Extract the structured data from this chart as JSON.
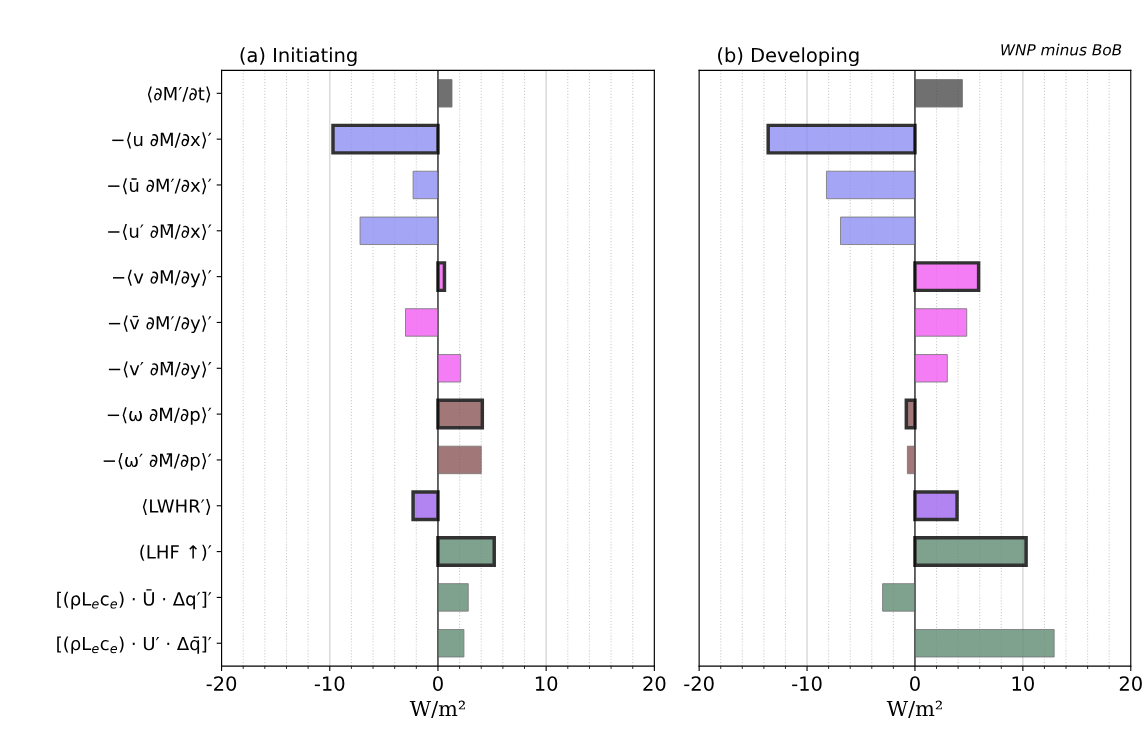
{
  "chart_data": [
    {
      "type": "bar",
      "orientation": "horizontal",
      "title": "(a) Initiating",
      "xlabel": "W/m²",
      "categories": [
        "⟨∂M′/∂t⟩",
        "−⟨u ∂M/∂x⟩′",
        "−⟨ū ∂M′/∂x⟩′",
        "−⟨u′ ∂M̄/∂x⟩′",
        "−⟨v ∂M/∂y⟩′",
        "−⟨v̄ ∂M′/∂y⟩′",
        "−⟨v′ ∂M̄/∂y⟩′",
        "−⟨ω ∂M/∂p⟩′",
        "−⟨ω′ ∂M̄/∂p⟩′",
        "⟨LWHR′⟩",
        "(LHF ↑)′",
        "[(ρL$_{e}$c$_{e}$) · Ū · Δq′]′",
        "[(ρL$_{e}$c$_{e}$) · U′ · Δq̄]′"
      ],
      "series": [
        {
          "line_style": "solid",
          "colors": [
            "#4d4d4d",
            "#8f8ff5",
            "#8f8ff5",
            "#8f8ff5",
            "#f25cf2",
            "#f25cf2",
            "#f25cf2",
            "#8b5656",
            "#8b5656",
            "#a066ef",
            "#5f8c73",
            "#5f8c73",
            "#5f8c73"
          ],
          "values": [
            null,
            -9.7,
            null,
            null,
            0.6,
            null,
            null,
            4.1,
            null,
            -2.3,
            5.2,
            null,
            null
          ]
        },
        {
          "colors": [
            "#4d4d4d",
            "#8f8ff5",
            "#8f8ff5",
            "#8f8ff5",
            "#f25cf2",
            "#f25cf2",
            "#f25cf2",
            "#8b5656",
            "#8b5656",
            "#a066ef",
            "#5f8c73",
            "#5f8c73",
            "#5f8c73"
          ],
          "values": [
            1.3,
            null,
            -2.3,
            -7.2,
            null,
            -3.0,
            2.1,
            null,
            4.0,
            null,
            null,
            2.8,
            2.4
          ]
        }
      ],
      "xlim": [
        -20,
        20
      ],
      "xticks": [
        -20,
        -10,
        0,
        10,
        20
      ],
      "grid": "x"
    },
    {
      "type": "bar",
      "orientation": "horizontal",
      "title": "(b) Developing",
      "xlabel": "W/m²",
      "annotations": [
        "WNP minus BoB"
      ],
      "categories": [
        null,
        null,
        null,
        null,
        null,
        null,
        null,
        null,
        null,
        null,
        null,
        null,
        null
      ],
      "series": [
        {
          "line_style": "solid",
          "colors": [
            "#4d4d4d",
            "#8f8ff5",
            "#8f8ff5",
            "#8f8ff5",
            "#f25cf2",
            "#f25cf2",
            "#f25cf2",
            "#8b5656",
            "#8b5656",
            "#a066ef",
            "#5f8c73",
            "#5f8c73",
            "#5f8c73"
          ],
          "values": [
            null,
            -13.6,
            null,
            null,
            5.9,
            null,
            null,
            -0.8,
            null,
            3.9,
            10.3,
            null,
            null
          ]
        },
        {
          "colors": [
            "#4d4d4d",
            "#8f8ff5",
            "#8f8ff5",
            "#8f8ff5",
            "#f25cf2",
            "#f25cf2",
            "#f25cf2",
            "#8b5656",
            "#8b5656",
            "#a066ef",
            "#5f8c73",
            "#5f8c73",
            "#5f8c73"
          ],
          "values": [
            4.4,
            null,
            -8.2,
            -6.9,
            null,
            4.8,
            3.0,
            null,
            -0.7,
            null,
            null,
            -3.0,
            12.9
          ]
        }
      ],
      "xlim": [
        -20,
        20
      ],
      "xticks": [
        -20,
        -10,
        0,
        10,
        20
      ],
      "grid": "x"
    }
  ]
}
